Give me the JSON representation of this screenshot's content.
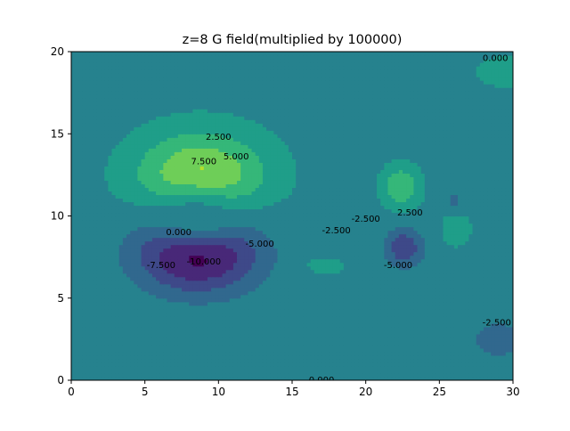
{
  "chart_data": {
    "type": "heatmap",
    "subtype": "filled-contour",
    "title": "z=8 G field(multiplied by 100000)",
    "xlabel": "",
    "ylabel": "",
    "xlim": [
      0,
      30
    ],
    "ylim": [
      0,
      20
    ],
    "xticks": [
      0,
      5,
      10,
      15,
      20,
      25,
      30
    ],
    "yticks": [
      0,
      5,
      10,
      15,
      20
    ],
    "grid": false,
    "legend": "none",
    "colormap": "viridis",
    "levels": [
      -12.5,
      -10.0,
      -7.5,
      -5.0,
      -2.5,
      0.0,
      2.5,
      5.0,
      7.5,
      10.0
    ],
    "level_colors": [
      "#440154",
      "#482878",
      "#3e4989",
      "#31688e",
      "#26828e",
      "#1f9e89",
      "#35b779",
      "#6ece58",
      "#b5de2b",
      "#fde725"
    ],
    "background_value_bands": {
      "below_y10": 0.0,
      "above_y10": -1.0
    },
    "features": [
      {
        "type": "positive-lobe",
        "center": [
          8.5,
          13.2
        ],
        "peak": 8.5
      },
      {
        "type": "negative-lobe",
        "center": [
          8.0,
          7.0
        ],
        "peak": -11.0
      },
      {
        "type": "positive-lobe",
        "center": [
          22.3,
          11.8
        ],
        "peak": 5.5
      },
      {
        "type": "negative-lobe",
        "center": [
          22.5,
          8.0
        ],
        "peak": -6.5
      },
      {
        "type": "positive-lobe",
        "center": [
          29.0,
          18.5
        ],
        "peak": 1.2
      },
      {
        "type": "negative-lobe",
        "center": [
          28.5,
          3.0
        ],
        "peak": -3.0
      }
    ],
    "contour_labels": [
      {
        "text": "7.500",
        "x": 9.0,
        "y": 13.3
      },
      {
        "text": "2.500",
        "x": 10.0,
        "y": 14.8
      },
      {
        "text": "5.000",
        "x": 11.2,
        "y": 13.6
      },
      {
        "text": "0.000",
        "x": 7.3,
        "y": 9.0
      },
      {
        "text": "-5.000",
        "x": 12.8,
        "y": 8.3
      },
      {
        "text": "-7.500",
        "x": 6.1,
        "y": 7.0
      },
      {
        "text": "-10.000",
        "x": 9.0,
        "y": 7.2
      },
      {
        "text": "-2.500",
        "x": 18.0,
        "y": 9.1
      },
      {
        "text": "-2.500",
        "x": 20.0,
        "y": 9.8
      },
      {
        "text": "2.500",
        "x": 23.0,
        "y": 10.2
      },
      {
        "text": "-5.000",
        "x": 22.2,
        "y": 7.0
      },
      {
        "text": "0.000",
        "x": 28.8,
        "y": 19.6
      },
      {
        "text": "-2.500",
        "x": 28.9,
        "y": 3.5
      },
      {
        "text": "0.000",
        "x": 17.0,
        "y": 0.0
      }
    ]
  }
}
